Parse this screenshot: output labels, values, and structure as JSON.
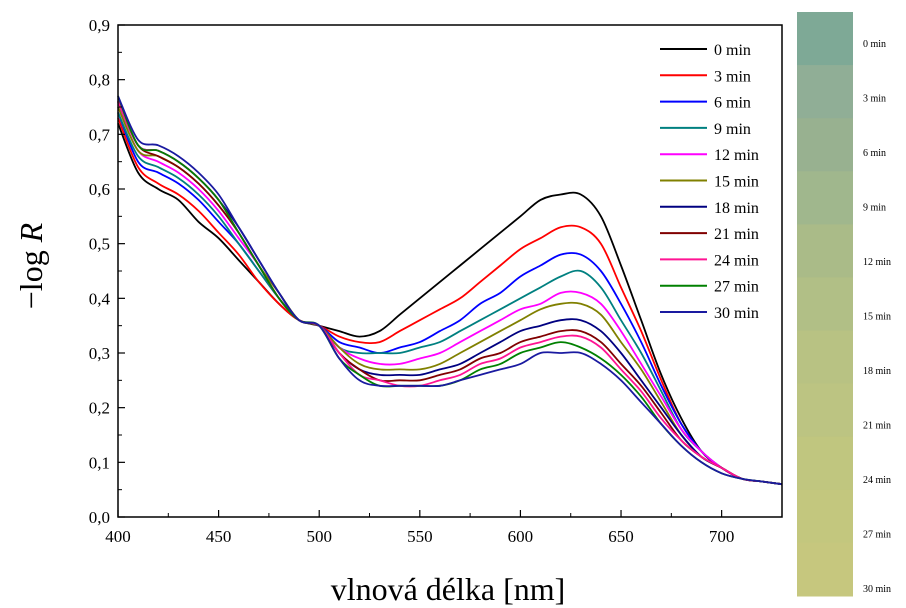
{
  "chart_data": {
    "type": "line",
    "xlabel": "vlnová délka [nm]",
    "ylabel_prefix": "−log ",
    "ylabel_var": "R",
    "xlim": [
      400,
      730
    ],
    "ylim": [
      0,
      0.9
    ],
    "x_ticks": [
      400,
      450,
      500,
      550,
      600,
      650,
      700
    ],
    "x_tick_labels": [
      "400",
      "450",
      "500",
      "550",
      "600",
      "650",
      "700"
    ],
    "y_ticks": [
      0,
      0.1,
      0.2,
      0.3,
      0.4,
      0.5,
      0.6,
      0.7,
      0.8,
      0.9
    ],
    "y_tick_labels": [
      "0,0",
      "0,1",
      "0,2",
      "0,3",
      "0,4",
      "0,5",
      "0,6",
      "0,7",
      "0,8",
      "0,9"
    ],
    "grid": false,
    "legend_position": "top-right",
    "x": [
      400,
      410,
      420,
      430,
      440,
      450,
      460,
      470,
      480,
      490,
      500,
      510,
      520,
      530,
      540,
      550,
      560,
      570,
      580,
      590,
      600,
      610,
      620,
      630,
      640,
      650,
      660,
      670,
      680,
      690,
      700,
      710,
      720,
      730
    ],
    "series": [
      {
        "name": "0 min",
        "color": "#000000",
        "values": [
          0.72,
          0.63,
          0.6,
          0.58,
          0.54,
          0.51,
          0.47,
          0.43,
          0.39,
          0.36,
          0.35,
          0.34,
          0.33,
          0.34,
          0.37,
          0.4,
          0.43,
          0.46,
          0.49,
          0.52,
          0.55,
          0.58,
          0.59,
          0.59,
          0.55,
          0.46,
          0.36,
          0.26,
          0.18,
          0.12,
          0.09,
          0.07,
          0.065,
          0.06
        ]
      },
      {
        "name": "3 min",
        "color": "#ff0000",
        "values": [
          0.73,
          0.64,
          0.61,
          0.59,
          0.56,
          0.52,
          0.48,
          0.43,
          0.39,
          0.36,
          0.35,
          0.33,
          0.32,
          0.32,
          0.34,
          0.36,
          0.38,
          0.4,
          0.43,
          0.46,
          0.49,
          0.51,
          0.53,
          0.53,
          0.5,
          0.42,
          0.34,
          0.25,
          0.17,
          0.12,
          0.09,
          0.07,
          0.065,
          0.06
        ]
      },
      {
        "name": "6 min",
        "color": "#0000ff",
        "values": [
          0.74,
          0.65,
          0.63,
          0.61,
          0.58,
          0.54,
          0.5,
          0.45,
          0.4,
          0.36,
          0.35,
          0.32,
          0.31,
          0.3,
          0.31,
          0.32,
          0.34,
          0.36,
          0.39,
          0.41,
          0.44,
          0.46,
          0.48,
          0.48,
          0.45,
          0.39,
          0.32,
          0.24,
          0.17,
          0.12,
          0.09,
          0.07,
          0.065,
          0.06
        ]
      },
      {
        "name": "9 min",
        "color": "#008080",
        "values": [
          0.74,
          0.66,
          0.64,
          0.62,
          0.59,
          0.55,
          0.5,
          0.45,
          0.4,
          0.36,
          0.35,
          0.31,
          0.3,
          0.3,
          0.3,
          0.31,
          0.32,
          0.34,
          0.36,
          0.38,
          0.4,
          0.42,
          0.44,
          0.45,
          0.42,
          0.36,
          0.3,
          0.23,
          0.16,
          0.12,
          0.09,
          0.07,
          0.065,
          0.06
        ]
      },
      {
        "name": "12 min",
        "color": "#ff00ff",
        "values": [
          0.75,
          0.67,
          0.65,
          0.63,
          0.6,
          0.56,
          0.51,
          0.46,
          0.4,
          0.36,
          0.35,
          0.31,
          0.29,
          0.28,
          0.28,
          0.29,
          0.3,
          0.32,
          0.34,
          0.36,
          0.38,
          0.39,
          0.41,
          0.41,
          0.39,
          0.34,
          0.28,
          0.22,
          0.16,
          0.12,
          0.09,
          0.07,
          0.065,
          0.06
        ]
      },
      {
        "name": "15 min",
        "color": "#808000",
        "values": [
          0.75,
          0.67,
          0.66,
          0.64,
          0.61,
          0.57,
          0.52,
          0.46,
          0.41,
          0.36,
          0.35,
          0.31,
          0.28,
          0.27,
          0.27,
          0.27,
          0.28,
          0.3,
          0.32,
          0.34,
          0.36,
          0.38,
          0.39,
          0.39,
          0.37,
          0.32,
          0.27,
          0.21,
          0.15,
          0.11,
          0.09,
          0.07,
          0.065,
          0.06
        ]
      },
      {
        "name": "18 min",
        "color": "#000080",
        "values": [
          0.76,
          0.68,
          0.67,
          0.65,
          0.62,
          0.58,
          0.53,
          0.47,
          0.41,
          0.36,
          0.35,
          0.3,
          0.27,
          0.26,
          0.26,
          0.26,
          0.27,
          0.28,
          0.3,
          0.32,
          0.34,
          0.35,
          0.36,
          0.36,
          0.34,
          0.3,
          0.25,
          0.2,
          0.15,
          0.11,
          0.09,
          0.07,
          0.065,
          0.06
        ]
      },
      {
        "name": "21 min",
        "color": "#800000",
        "values": [
          0.76,
          0.68,
          0.66,
          0.64,
          0.61,
          0.57,
          0.52,
          0.46,
          0.4,
          0.36,
          0.35,
          0.3,
          0.27,
          0.25,
          0.25,
          0.25,
          0.26,
          0.27,
          0.29,
          0.3,
          0.32,
          0.33,
          0.34,
          0.34,
          0.32,
          0.28,
          0.24,
          0.19,
          0.14,
          0.11,
          0.09,
          0.07,
          0.065,
          0.06
        ]
      },
      {
        "name": "24 min",
        "color": "#ff1493",
        "values": [
          0.76,
          0.68,
          0.67,
          0.65,
          0.62,
          0.58,
          0.52,
          0.46,
          0.4,
          0.36,
          0.35,
          0.3,
          0.26,
          0.25,
          0.24,
          0.24,
          0.25,
          0.26,
          0.28,
          0.29,
          0.31,
          0.32,
          0.33,
          0.33,
          0.31,
          0.27,
          0.23,
          0.18,
          0.14,
          0.11,
          0.09,
          0.07,
          0.065,
          0.06
        ]
      },
      {
        "name": "27 min",
        "color": "#008000",
        "values": [
          0.77,
          0.68,
          0.67,
          0.65,
          0.62,
          0.58,
          0.52,
          0.46,
          0.4,
          0.36,
          0.35,
          0.29,
          0.26,
          0.24,
          0.24,
          0.24,
          0.24,
          0.25,
          0.27,
          0.28,
          0.3,
          0.31,
          0.32,
          0.31,
          0.29,
          0.26,
          0.22,
          0.17,
          0.13,
          0.1,
          0.08,
          0.07,
          0.065,
          0.06
        ]
      },
      {
        "name": "30 min",
        "color": "#1a1aa0",
        "values": [
          0.77,
          0.69,
          0.68,
          0.66,
          0.63,
          0.59,
          0.53,
          0.47,
          0.41,
          0.36,
          0.35,
          0.29,
          0.25,
          0.24,
          0.24,
          0.24,
          0.24,
          0.25,
          0.26,
          0.27,
          0.28,
          0.3,
          0.3,
          0.3,
          0.28,
          0.25,
          0.21,
          0.17,
          0.13,
          0.1,
          0.08,
          0.07,
          0.065,
          0.06
        ]
      }
    ]
  },
  "color_strip": {
    "labels": [
      "0 min",
      "3 min",
      "6 min",
      "9 min",
      "12 min",
      "15 min",
      "18 min",
      "21 min",
      "24 min",
      "27 min",
      "30 min"
    ],
    "colors": [
      "#7ea996",
      "#90ae96",
      "#98b190",
      "#a0b78d",
      "#aabb88",
      "#b1bf86",
      "#b8c283",
      "#bcc482",
      "#c0c67f",
      "#c3c77e",
      "#c6c77e"
    ]
  }
}
